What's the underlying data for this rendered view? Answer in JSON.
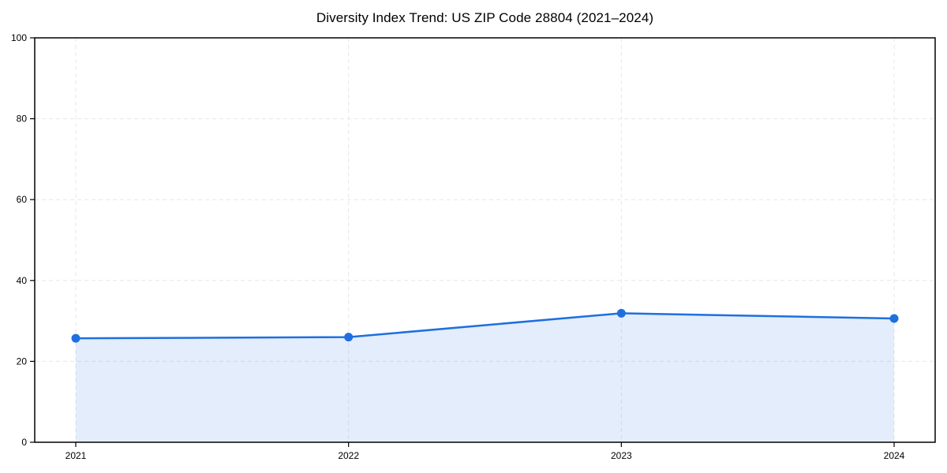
{
  "chart_data": {
    "type": "area",
    "title": "Diversity Index Trend: US ZIP Code 28804 (2021–2024)",
    "categories": [
      "2021",
      "2022",
      "2023",
      "2024"
    ],
    "values": [
      25.7,
      26.0,
      31.9,
      30.6
    ],
    "series_name": "Diversity Index",
    "xlabel": "",
    "ylabel": "",
    "ylim": [
      0,
      100
    ],
    "yticks": [
      0,
      20,
      40,
      60,
      80,
      100
    ],
    "grid": "dashed, horizontal and vertical",
    "legend_position": "none",
    "colors": {
      "line": "#1e6fe0",
      "marker": "#1e6fe0",
      "area_fill": "rgba(30,111,224,0.12)",
      "gridline": "#e7e7e7",
      "axis": "#000000",
      "background": "#ffffff",
      "title_text": "#000000",
      "tick_text": "#000000"
    }
  }
}
